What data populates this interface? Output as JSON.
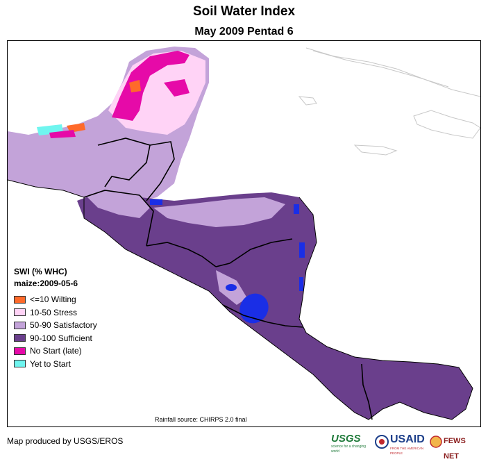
{
  "title": "Soil Water Index",
  "subtitle": "May 2009 Pentad 6",
  "legend": {
    "title": "SWI (% WHC)",
    "crop": "maize:2009-05-6",
    "items": [
      {
        "label": "<=10 Wilting",
        "color": "#ff6a2a"
      },
      {
        "label": "10-50 Stress",
        "color": "#ffd3f6"
      },
      {
        "label": "50-90 Satisfactory",
        "color": "#c3a3d9"
      },
      {
        "label": "90-100 Sufficient",
        "color": "#6a3f8c"
      },
      {
        "label": "No Start (late)",
        "color": "#e60aa8"
      },
      {
        "label": "Yet to Start",
        "color": "#6ff5ef"
      }
    ]
  },
  "source": "Rainfall source: CHIRPS 2.0 final",
  "credit": "Map produced by USGS/EROS",
  "logos": {
    "usgs": "USGS",
    "usgs_tagline": "science for a changing world",
    "usaid": "USAID",
    "usaid_tagline": "FROM THE AMERICAN PEOPLE",
    "fewsnet": "FEWS NET"
  },
  "colors": {
    "lake": "#1a2ee6",
    "border": "#000000",
    "coast_outline": "#c8c8c8"
  }
}
